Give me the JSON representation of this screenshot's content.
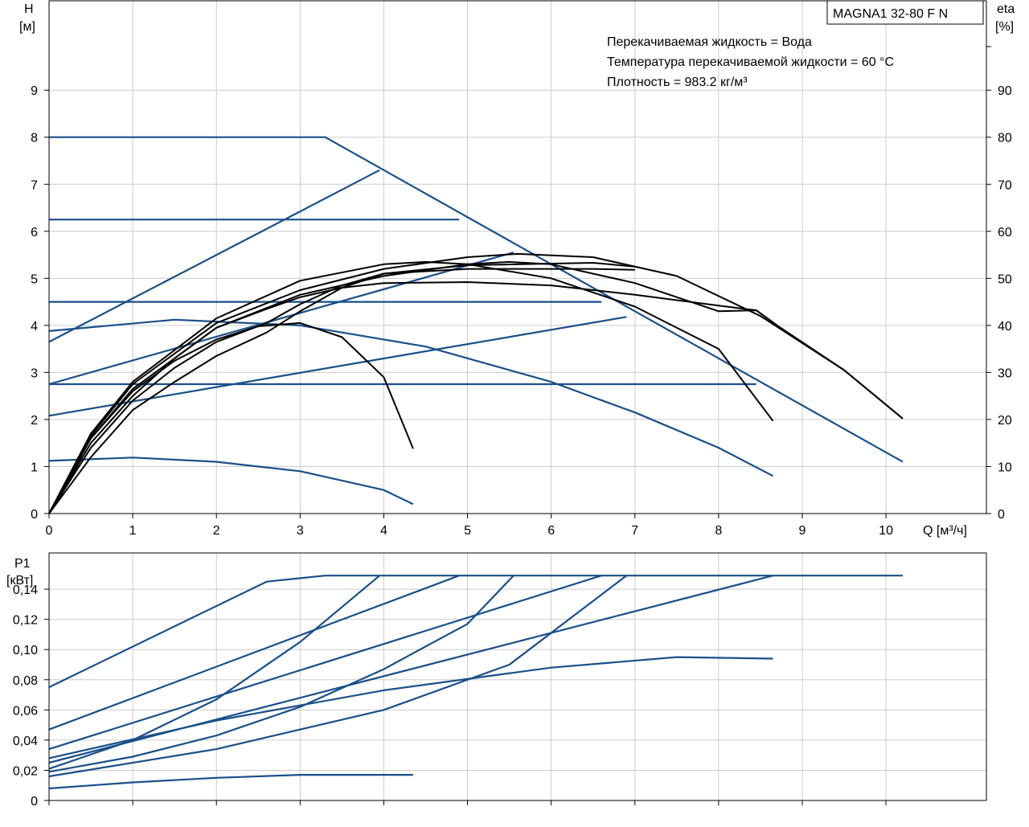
{
  "title": "MAGNA1 32-80 F N",
  "info_lines": [
    "Перекачиваемая жидкость = Вода",
    "Температура перекачиваемой жидкости = 60 °C",
    "Плотность = 983.2 кг/м³"
  ],
  "colors": {
    "duty_curves": "#1a4f8a",
    "efficiency_curves": "#000000",
    "grid": "#cccccc"
  },
  "chart_data": [
    {
      "type": "line",
      "name": "head",
      "xlabel": "Q [м³/ч]",
      "ylabel_line1": "H",
      "ylabel_line2": "[м]",
      "y2label_line1": "eta",
      "y2label_line2": "[%]",
      "xlim": [
        0,
        11.2
      ],
      "ylim": [
        0,
        10.9
      ],
      "y2lim": [
        0,
        109
      ],
      "x_ticks": [
        0,
        1,
        2,
        3,
        4,
        5,
        6,
        7,
        8,
        9,
        10
      ],
      "y_ticks": [
        0,
        1,
        2,
        3,
        4,
        5,
        6,
        7,
        8,
        9
      ],
      "y2_ticks": [
        0,
        10,
        20,
        30,
        40,
        50,
        60,
        70,
        80,
        90
      ],
      "grid": true,
      "series": [
        {
          "style": "blue",
          "points": [
            [
              0,
              8.0
            ],
            [
              3.3,
              8.0
            ],
            [
              10.2,
              1.1
            ]
          ]
        },
        {
          "style": "blue",
          "points": [
            [
              0,
              6.25
            ],
            [
              4.9,
              6.25
            ]
          ]
        },
        {
          "style": "blue",
          "points": [
            [
              0,
              4.5
            ],
            [
              6.6,
              4.5
            ]
          ]
        },
        {
          "style": "blue",
          "points": [
            [
              0,
              2.75
            ],
            [
              8.45,
              2.75
            ]
          ]
        },
        {
          "style": "blue",
          "points": [
            [
              0,
              3.65
            ],
            [
              3.95,
              7.3
            ]
          ]
        },
        {
          "style": "blue",
          "points": [
            [
              0,
              2.75
            ],
            [
              5.55,
              5.55
            ]
          ]
        },
        {
          "style": "blue",
          "points": [
            [
              0,
              2.08
            ],
            [
              6.9,
              4.18
            ]
          ]
        },
        {
          "style": "blue",
          "points": [
            [
              0,
              3.88
            ],
            [
              1.5,
              4.12
            ],
            [
              3.0,
              4.0
            ],
            [
              4.5,
              3.55
            ],
            [
              6.0,
              2.8
            ],
            [
              7.0,
              2.15
            ],
            [
              8.0,
              1.4
            ],
            [
              8.65,
              0.8
            ]
          ]
        },
        {
          "style": "blue",
          "points": [
            [
              0,
              1.12
            ],
            [
              1.0,
              1.19
            ],
            [
              2.0,
              1.1
            ],
            [
              3.0,
              0.9
            ],
            [
              4.0,
              0.5
            ],
            [
              4.35,
              0.2
            ]
          ]
        },
        {
          "style": "black",
          "points": [
            [
              0,
              0
            ],
            [
              0.5,
              1.6
            ],
            [
              1.0,
              2.6
            ],
            [
              1.5,
              3.25
            ],
            [
              2.0,
              3.7
            ],
            [
              2.5,
              3.98
            ],
            [
              3.0,
              4.05
            ],
            [
              3.5,
              3.75
            ],
            [
              4.0,
              2.9
            ],
            [
              4.35,
              1.38
            ]
          ]
        },
        {
          "style": "black",
          "points": [
            [
              0,
              0
            ],
            [
              0.5,
              1.5
            ],
            [
              1.0,
              2.5
            ],
            [
              1.5,
              3.3
            ],
            [
              2.0,
              3.95
            ],
            [
              2.6,
              4.35
            ],
            [
              3.0,
              4.6
            ],
            [
              3.5,
              4.8
            ],
            [
              4.0,
              4.9
            ],
            [
              5.0,
              4.92
            ],
            [
              6.0,
              4.85
            ],
            [
              7.0,
              4.65
            ],
            [
              8.0,
              4.42
            ],
            [
              8.45,
              4.32
            ],
            [
              8.7,
              4.0
            ]
          ]
        },
        {
          "style": "black",
          "points": [
            [
              0,
              0
            ],
            [
              0.5,
              1.4
            ],
            [
              1.0,
              2.4
            ],
            [
              1.5,
              3.1
            ],
            [
              2.0,
              3.65
            ],
            [
              2.6,
              4.05
            ],
            [
              3.0,
              4.45
            ],
            [
              3.5,
              4.85
            ],
            [
              4.0,
              5.1
            ],
            [
              5.0,
              5.2
            ],
            [
              6.5,
              5.2
            ],
            [
              7.0,
              5.18
            ]
          ]
        },
        {
          "style": "black",
          "points": [
            [
              0,
              0
            ],
            [
              0.5,
              1.2
            ],
            [
              1.0,
              2.2
            ],
            [
              1.5,
              2.8
            ],
            [
              2.0,
              3.35
            ],
            [
              2.6,
              3.85
            ],
            [
              3.0,
              4.3
            ],
            [
              3.5,
              4.8
            ],
            [
              4.0,
              5.1
            ],
            [
              5.0,
              5.28
            ],
            [
              6.5,
              5.33
            ],
            [
              7.0,
              5.25
            ]
          ]
        },
        {
          "style": "black",
          "points": [
            [
              0,
              0
            ],
            [
              0.5,
              1.65
            ],
            [
              1.0,
              2.75
            ],
            [
              2.0,
              4.05
            ],
            [
              3.0,
              4.75
            ],
            [
              4.0,
              5.2
            ],
            [
              5.0,
              5.45
            ],
            [
              5.6,
              5.52
            ],
            [
              6.5,
              5.45
            ],
            [
              7.5,
              5.05
            ],
            [
              8.5,
              4.2
            ],
            [
              9.5,
              3.05
            ],
            [
              10.2,
              2.02
            ]
          ]
        },
        {
          "style": "black",
          "points": [
            [
              0,
              0
            ],
            [
              0.5,
              1.7
            ],
            [
              1.0,
              2.8
            ],
            [
              2.0,
              4.15
            ],
            [
              3.0,
              4.95
            ],
            [
              4.0,
              5.3
            ],
            [
              4.5,
              5.35
            ],
            [
              5.0,
              5.3
            ],
            [
              6.0,
              5.0
            ],
            [
              7.0,
              4.4
            ],
            [
              8.0,
              3.5
            ],
            [
              8.65,
              1.97
            ]
          ]
        },
        {
          "style": "black",
          "points": [
            [
              0,
              0
            ],
            [
              0.5,
              1.6
            ],
            [
              1.0,
              2.65
            ],
            [
              2.0,
              3.95
            ],
            [
              3.0,
              4.65
            ],
            [
              4.0,
              5.05
            ],
            [
              5.0,
              5.3
            ],
            [
              5.5,
              5.35
            ],
            [
              6.0,
              5.3
            ],
            [
              7.0,
              4.9
            ],
            [
              8.0,
              4.3
            ],
            [
              8.45,
              4.32
            ],
            [
              8.7,
              4.0
            ],
            [
              9.5,
              3.05
            ],
            [
              10.2,
              2.02
            ]
          ]
        }
      ]
    },
    {
      "type": "line",
      "name": "power",
      "ylabel_line1": "P1",
      "ylabel_line2": "[кВт]",
      "xlim": [
        0,
        11.2
      ],
      "ylim": [
        0,
        0.164
      ],
      "x_ticks": [
        0,
        1,
        2,
        3,
        4,
        5,
        6,
        7,
        8,
        9,
        10
      ],
      "y_ticks": [
        0,
        0.02,
        0.04,
        0.06,
        0.08,
        0.1,
        0.12,
        0.14
      ],
      "y_tick_labels": [
        "0",
        "0,02",
        "0,04",
        "0,06",
        "0,08",
        "0,10",
        "0,12",
        "0,14"
      ],
      "grid": true,
      "series": [
        {
          "style": "blue",
          "points": [
            [
              0,
              0.075
            ],
            [
              2.6,
              0.145
            ],
            [
              3.3,
              0.149
            ],
            [
              10.2,
              0.149
            ]
          ]
        },
        {
          "style": "blue",
          "points": [
            [
              0,
              0.047
            ],
            [
              4.9,
              0.149
            ]
          ]
        },
        {
          "style": "blue",
          "points": [
            [
              0,
              0.034
            ],
            [
              6.6,
              0.149
            ]
          ]
        },
        {
          "style": "blue",
          "points": [
            [
              0,
              0.025
            ],
            [
              8.65,
              0.149
            ]
          ]
        },
        {
          "style": "blue",
          "points": [
            [
              0,
              0.021
            ],
            [
              1.0,
              0.04
            ],
            [
              2.0,
              0.067
            ],
            [
              3.0,
              0.105
            ],
            [
              3.95,
              0.149
            ]
          ]
        },
        {
          "style": "blue",
          "points": [
            [
              0,
              0.019
            ],
            [
              1.0,
              0.029
            ],
            [
              2.0,
              0.043
            ],
            [
              3.0,
              0.062
            ],
            [
              4.0,
              0.087
            ],
            [
              5.0,
              0.117
            ],
            [
              5.55,
              0.149
            ]
          ]
        },
        {
          "style": "blue",
          "points": [
            [
              0,
              0.016
            ],
            [
              2.0,
              0.034
            ],
            [
              4.0,
              0.06
            ],
            [
              5.5,
              0.09
            ],
            [
              6.9,
              0.149
            ]
          ]
        },
        {
          "style": "blue",
          "points": [
            [
              0,
              0.028
            ],
            [
              2.0,
              0.053
            ],
            [
              4.0,
              0.073
            ],
            [
              6.0,
              0.088
            ],
            [
              7.5,
              0.095
            ],
            [
              8.65,
              0.094
            ]
          ]
        },
        {
          "style": "blue",
          "points": [
            [
              0,
              0.008
            ],
            [
              1.0,
              0.012
            ],
            [
              2.0,
              0.015
            ],
            [
              3.0,
              0.017
            ],
            [
              4.35,
              0.017
            ]
          ]
        }
      ]
    }
  ]
}
